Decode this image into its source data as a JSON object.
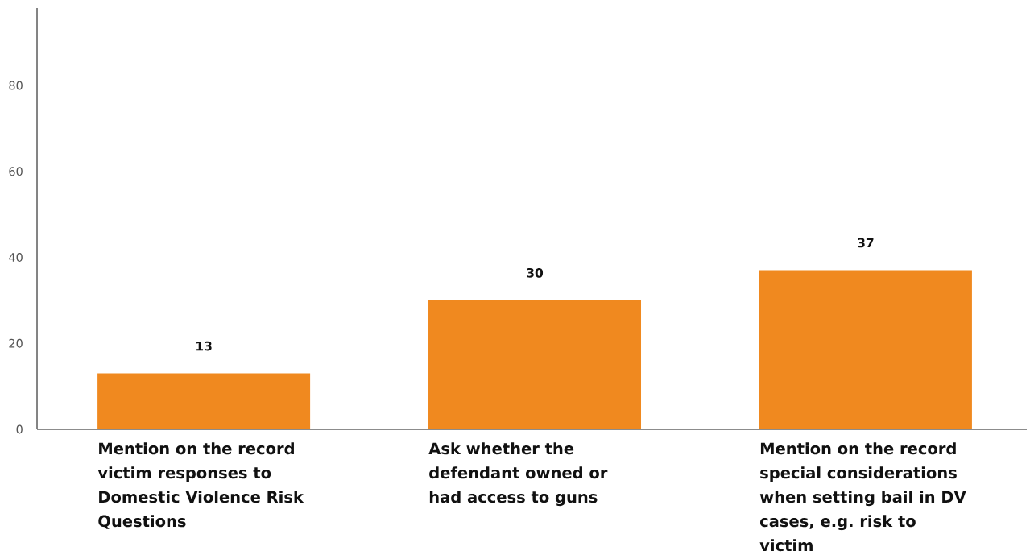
{
  "chart_data": {
    "type": "bar",
    "categories": [
      "Mention on the record victim responses to Domestic Violence Risk Questions",
      "Ask whether the defendant owned or had access to guns",
      "Mention on the record special considerations when setting bail in DV cases, e.g. risk to victim"
    ],
    "values": [
      13,
      30,
      37
    ],
    "color": "#f0891f",
    "data_labels": true,
    "ylim": [
      0,
      98
    ],
    "yticks": [
      0,
      20,
      40,
      60,
      80
    ]
  }
}
